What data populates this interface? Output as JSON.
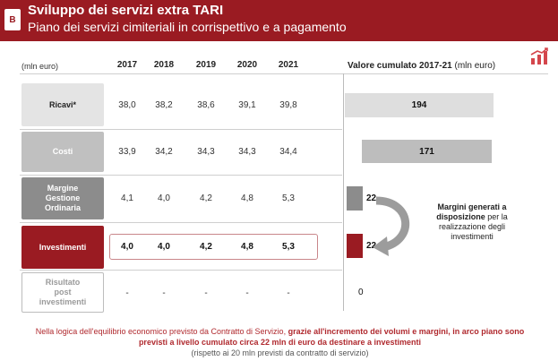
{
  "header": {
    "badge": "B",
    "title": "Sviluppo dei servizi extra TARI",
    "subtitle": "Piano dei servizi cimiteriali in corrispettivo e a pagamento"
  },
  "table": {
    "unit_label": "(mln euro)",
    "years": [
      "2017",
      "2018",
      "2019",
      "2020",
      "2021"
    ],
    "cumulative_title_bold": "Valore cumulato 2017-21",
    "cumulative_title_unit": "(mln euro)",
    "rows": [
      {
        "label": "Ricavi*",
        "values": [
          "38,0",
          "38,2",
          "38,6",
          "39,1",
          "39,8"
        ],
        "cumulative": "194"
      },
      {
        "label": "Costi",
        "values": [
          "33,9",
          "34,2",
          "34,3",
          "34,3",
          "34,4"
        ],
        "cumulative": "171"
      },
      {
        "label_lines": [
          "Margine",
          "Gestione",
          "Ordinaria"
        ],
        "values": [
          "4,1",
          "4,0",
          "4,2",
          "4,8",
          "5,3"
        ],
        "cumulative": "22"
      },
      {
        "label": "Investimenti",
        "values": [
          "4,0",
          "4,0",
          "4,2",
          "4,8",
          "5,3"
        ],
        "cumulative": "22"
      },
      {
        "label_lines": [
          "Risultato",
          "post",
          "investimenti"
        ],
        "values": [
          "-",
          "-",
          "-",
          "-",
          "-"
        ],
        "cumulative": "0"
      }
    ]
  },
  "side_note": {
    "bold": "Margini generati a disposizione",
    "rest": "per la realizzazione degli investimenti"
  },
  "footer": {
    "part1": "Nella logica dell'equilibrio economico previsto da Contratto di Servizio, ",
    "bold": "grazie all'incremento dei volumi e margini, in arco piano sono previsti a livello cumulato circa 22 mln di euro da destinare a investimenti",
    "paren": "(rispetto ai 20 mln previsti da contratto di servizio)"
  },
  "colors": {
    "brand_red": "#9a1b22",
    "gray_light": "#e4e4e4",
    "gray_mid": "#c0c0c0",
    "gray_dark": "#8c8c8c"
  }
}
